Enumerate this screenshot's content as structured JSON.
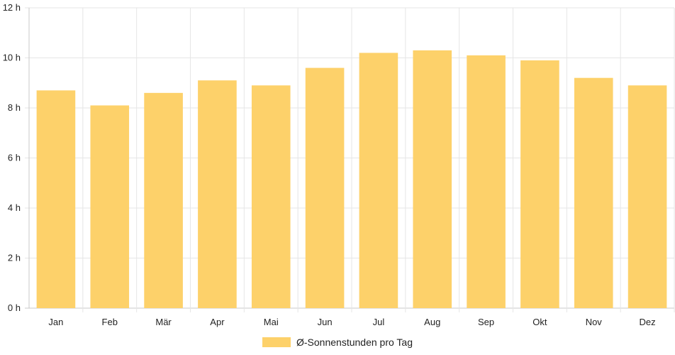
{
  "chart_data": {
    "type": "bar",
    "categories": [
      "Jan",
      "Feb",
      "Mär",
      "Apr",
      "Mai",
      "Jun",
      "Jul",
      "Aug",
      "Sep",
      "Okt",
      "Nov",
      "Dez"
    ],
    "series": [
      {
        "name": "Ø-Sonnenstunden pro Tag",
        "values": [
          8.7,
          8.1,
          8.6,
          9.1,
          8.9,
          9.6,
          10.2,
          10.3,
          10.1,
          9.9,
          9.2,
          8.9
        ],
        "color": "#fdd16a"
      }
    ],
    "y_ticks": [
      "0 h",
      "2 h",
      "4 h",
      "6 h",
      "8 h",
      "10 h",
      "12 h"
    ],
    "ylim": [
      0,
      12
    ],
    "grid": true,
    "legend_position": "bottom"
  }
}
